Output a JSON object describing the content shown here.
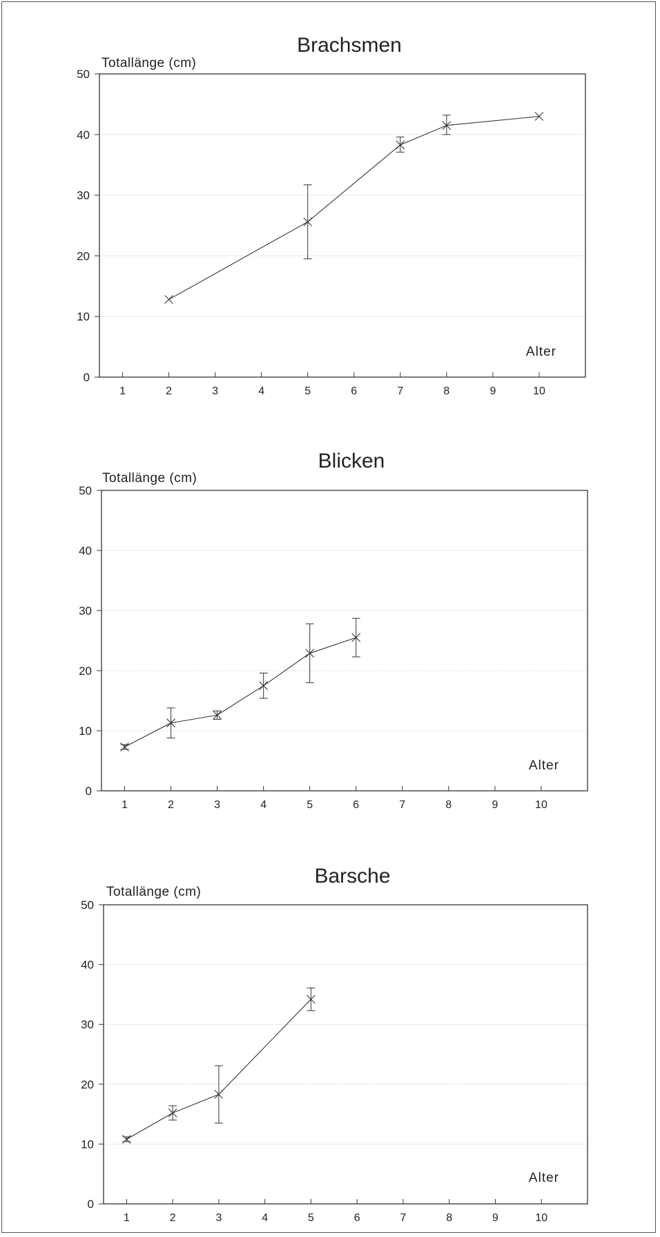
{
  "chart_data": [
    {
      "type": "line",
      "title": "Brachsmen",
      "ylabel": "Totallänge (cm)",
      "xlabel": "Alter",
      "categories": [
        "1",
        "2",
        "3",
        "4",
        "5",
        "6",
        "7",
        "8",
        "9",
        "10"
      ],
      "ylim": [
        0,
        50
      ],
      "yticks": [
        "0",
        "10",
        "20",
        "30",
        "40",
        "50"
      ],
      "grid": true,
      "points": [
        {
          "x": 2,
          "y": 12.8,
          "low": 12.8,
          "high": 12.8
        },
        {
          "x": 5,
          "y": 25.6,
          "low": 19.5,
          "high": 31.7
        },
        {
          "x": 7,
          "y": 38.3,
          "low": 37.1,
          "high": 39.6
        },
        {
          "x": 8,
          "y": 41.5,
          "low": 40.0,
          "high": 43.2
        },
        {
          "x": 10,
          "y": 43.0,
          "low": 43.0,
          "high": 43.0
        }
      ]
    },
    {
      "type": "line",
      "title": "Blicken",
      "ylabel": "Totallänge (cm)",
      "xlabel": "Alter",
      "categories": [
        "1",
        "2",
        "3",
        "4",
        "5",
        "6",
        "7",
        "8",
        "9",
        "10"
      ],
      "ylim": [
        0,
        50
      ],
      "yticks": [
        "0",
        "10",
        "20",
        "30",
        "40",
        "50"
      ],
      "grid": true,
      "points": [
        {
          "x": 1,
          "y": 7.3,
          "low": 6.9,
          "high": 7.7
        },
        {
          "x": 2,
          "y": 11.3,
          "low": 8.8,
          "high": 13.8
        },
        {
          "x": 3,
          "y": 12.6,
          "low": 11.9,
          "high": 13.3
        },
        {
          "x": 4,
          "y": 17.5,
          "low": 15.4,
          "high": 19.6
        },
        {
          "x": 5,
          "y": 22.9,
          "low": 18.0,
          "high": 27.8
        },
        {
          "x": 6,
          "y": 25.5,
          "low": 22.3,
          "high": 28.7
        }
      ]
    },
    {
      "type": "line",
      "title": "Barsche",
      "ylabel": "Totallänge (cm)",
      "xlabel": "Alter",
      "categories": [
        "1",
        "2",
        "3",
        "4",
        "5",
        "6",
        "7",
        "8",
        "9",
        "10"
      ],
      "ylim": [
        0,
        50
      ],
      "yticks": [
        "0",
        "10",
        "20",
        "30",
        "40",
        "50"
      ],
      "grid": true,
      "points": [
        {
          "x": 1,
          "y": 10.8,
          "low": 10.4,
          "high": 11.2
        },
        {
          "x": 2,
          "y": 15.2,
          "low": 14.0,
          "high": 16.4
        },
        {
          "x": 3,
          "y": 18.3,
          "low": 13.5,
          "high": 23.1
        },
        {
          "x": 5,
          "y": 34.2,
          "low": 32.3,
          "high": 36.1
        }
      ]
    }
  ]
}
